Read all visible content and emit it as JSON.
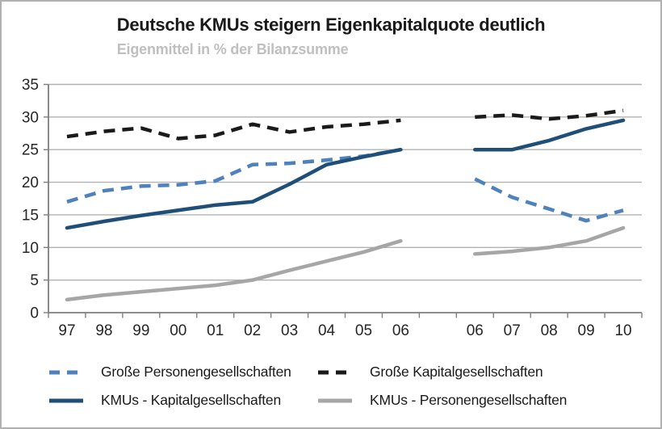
{
  "chart_data": {
    "type": "line",
    "title": "Deutsche KMUs steigern Eigenkapitalquote deutlich",
    "subtitle": "Eigenmittel in % der Bilanzsumme",
    "grid": true,
    "legend_position": "bottom",
    "y_axis": {
      "min": 0,
      "max": 35,
      "ticks": [
        0,
        5,
        10,
        15,
        20,
        25,
        30,
        35
      ]
    },
    "x_axis": {
      "slot_labels": [
        "97",
        "98",
        "99",
        "00",
        "01",
        "02",
        "03",
        "04",
        "05",
        "06",
        "",
        "06",
        "07",
        "08",
        "09",
        "10"
      ],
      "note": "two periods separated by an empty slot (statistical break at 06)"
    },
    "series": [
      {
        "name": "Große Personengesellschaften",
        "color": "#4F81BD",
        "line_style": "dashed",
        "segments": [
          {
            "start_slot": 0,
            "x": [
              "97",
              "98",
              "99",
              "00",
              "01",
              "02",
              "03",
              "04",
              "05",
              "06"
            ],
            "values": [
              17,
              18.7,
              19.4,
              19.6,
              20.2,
              22.7,
              22.9,
              23.4,
              24,
              25
            ]
          },
          {
            "start_slot": 11,
            "x": [
              "06",
              "07",
              "08",
              "09",
              "10"
            ],
            "values": [
              20.5,
              17.7,
              15.9,
              14.1,
              15.7
            ]
          }
        ]
      },
      {
        "name": "Große Kapitalgesellschaften",
        "color": "#1A1A1A",
        "line_style": "dashed",
        "segments": [
          {
            "start_slot": 0,
            "x": [
              "97",
              "98",
              "99",
              "00",
              "01",
              "02",
              "03",
              "04",
              "05",
              "06"
            ],
            "values": [
              27,
              27.8,
              28.3,
              26.7,
              27.2,
              28.9,
              27.7,
              28.5,
              28.9,
              29.5
            ]
          },
          {
            "start_slot": 11,
            "x": [
              "06",
              "07",
              "08",
              "09",
              "10"
            ],
            "values": [
              30,
              30.3,
              29.7,
              30.2,
              31
            ]
          }
        ]
      },
      {
        "name": "KMUs - Kapitalgesellschaften",
        "color": "#1F4E79",
        "line_style": "solid",
        "segments": [
          {
            "start_slot": 0,
            "x": [
              "97",
              "98",
              "99",
              "00",
              "01",
              "02",
              "03",
              "04",
              "05",
              "06"
            ],
            "values": [
              13,
              14,
              14.9,
              15.7,
              16.5,
              17,
              19.7,
              22.7,
              23.9,
              25
            ]
          },
          {
            "start_slot": 11,
            "x": [
              "06",
              "07",
              "08",
              "09",
              "10"
            ],
            "values": [
              25,
              25,
              26.4,
              28.2,
              29.5
            ]
          }
        ]
      },
      {
        "name": "KMUs - Personengesellschaften",
        "color": "#A6A6A6",
        "line_style": "solid",
        "segments": [
          {
            "start_slot": 0,
            "x": [
              "97",
              "98",
              "99",
              "00",
              "01",
              "02",
              "03",
              "04",
              "05",
              "06"
            ],
            "values": [
              2,
              2.7,
              3.2,
              3.7,
              4.2,
              5,
              6.5,
              7.9,
              9.3,
              11
            ]
          },
          {
            "start_slot": 11,
            "x": [
              "06",
              "07",
              "08",
              "09",
              "10"
            ],
            "values": [
              9,
              9.4,
              10,
              11,
              13
            ]
          }
        ]
      }
    ],
    "colors": {
      "gridline": "#b2b2b2",
      "axis": "#7f7f7f",
      "tick_label": "#262626",
      "title": "#1a1a1a",
      "subtitle": "#bfbfbf"
    }
  }
}
